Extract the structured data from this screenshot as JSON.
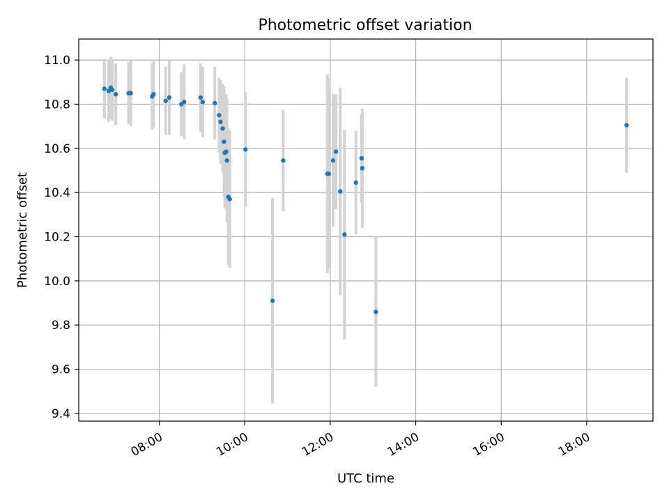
{
  "chart_data": {
    "type": "scatter",
    "title": "Photometric offset variation",
    "xlabel": "UTC time",
    "ylabel": "Photometric offset",
    "x_unit": "UTC time of day",
    "xlim": [
      "06:07",
      "19:33"
    ],
    "ylim": [
      9.365,
      11.095
    ],
    "grid": true,
    "x_ticks": [
      "08:00",
      "10:00",
      "12:00",
      "14:00",
      "16:00",
      "18:00"
    ],
    "y_ticks": [
      9.4,
      9.6,
      9.8,
      10.0,
      10.2,
      10.4,
      10.6,
      10.8,
      11.0
    ],
    "y_tick_labels": [
      "9.4",
      "9.6",
      "9.8",
      "10.0",
      "10.2",
      "10.4",
      "10.6",
      "10.8",
      "11.0"
    ],
    "marker_color": "#1f77b4",
    "errorbar_color": "#d3d3d3",
    "points": [
      {
        "x": "06:43",
        "y": 10.87,
        "err": 0.135
      },
      {
        "x": "06:49",
        "y": 10.86,
        "err": 0.14
      },
      {
        "x": "06:52",
        "y": 10.875,
        "err": 0.14
      },
      {
        "x": "06:54",
        "y": 10.865,
        "err": 0.14
      },
      {
        "x": "06:59",
        "y": 10.845,
        "err": 0.14
      },
      {
        "x": "07:17",
        "y": 10.85,
        "err": 0.14
      },
      {
        "x": "07:20",
        "y": 10.85,
        "err": 0.15
      },
      {
        "x": "07:50",
        "y": 10.835,
        "err": 0.15
      },
      {
        "x": "07:52",
        "y": 10.845,
        "err": 0.15
      },
      {
        "x": "08:09",
        "y": 10.815,
        "err": 0.155
      },
      {
        "x": "08:14",
        "y": 10.83,
        "err": 0.17
      },
      {
        "x": "08:31",
        "y": 10.8,
        "err": 0.145
      },
      {
        "x": "08:35",
        "y": 10.81,
        "err": 0.17
      },
      {
        "x": "08:58",
        "y": 10.83,
        "err": 0.155
      },
      {
        "x": "09:01",
        "y": 10.81,
        "err": 0.16
      },
      {
        "x": "09:18",
        "y": 10.805,
        "err": 0.165
      },
      {
        "x": "09:24",
        "y": 10.75,
        "err": 0.17
      },
      {
        "x": "09:26",
        "y": 10.72,
        "err": 0.19
      },
      {
        "x": "09:29",
        "y": 10.69,
        "err": 0.2
      },
      {
        "x": "09:31",
        "y": 10.63,
        "err": 0.25
      },
      {
        "x": "09:32",
        "y": 10.58,
        "err": 0.25
      },
      {
        "x": "09:34",
        "y": 10.585,
        "err": 0.26
      },
      {
        "x": "09:35",
        "y": 10.545,
        "err": 0.28
      },
      {
        "x": "09:37",
        "y": 10.38,
        "err": 0.31
      },
      {
        "x": "09:39",
        "y": 10.37,
        "err": 0.31
      },
      {
        "x": "10:01",
        "y": 10.595,
        "err": 0.26
      },
      {
        "x": "10:39",
        "y": 9.91,
        "err": 0.465
      },
      {
        "x": "10:54",
        "y": 10.545,
        "err": 0.23
      },
      {
        "x": "11:56",
        "y": 10.485,
        "err": 0.45
      },
      {
        "x": "11:58",
        "y": 10.485,
        "err": 0.43
      },
      {
        "x": "12:04",
        "y": 10.545,
        "err": 0.3
      },
      {
        "x": "12:08",
        "y": 10.585,
        "err": 0.26
      },
      {
        "x": "12:14",
        "y": 10.405,
        "err": 0.47
      },
      {
        "x": "12:20",
        "y": 10.21,
        "err": 0.475
      },
      {
        "x": "12:36",
        "y": 10.445,
        "err": 0.235
      },
      {
        "x": "12:44",
        "y": 10.555,
        "err": 0.2
      },
      {
        "x": "12:45",
        "y": 10.51,
        "err": 0.27
      },
      {
        "x": "13:04",
        "y": 9.86,
        "err": 0.34
      },
      {
        "x": "18:56",
        "y": 10.705,
        "err": 0.215
      }
    ]
  }
}
